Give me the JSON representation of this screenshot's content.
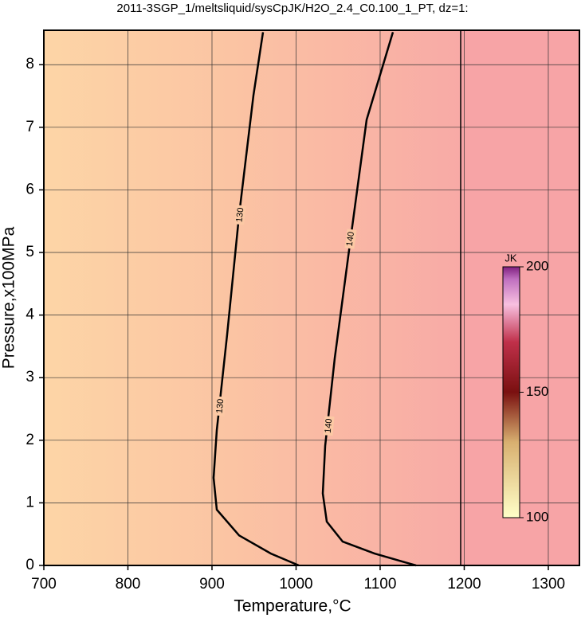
{
  "chart_data": {
    "type": "contour",
    "title": "2011-3SGP_1/meltsliquid/sysCpJK/H2O_2.4_C0.100_1_PT, dz=1:",
    "x_label": "Temperature,°C",
    "y_label": "Pressure,x100MPa",
    "xlim": [
      700,
      1337
    ],
    "ylim": [
      0,
      8.55
    ],
    "xticks": [
      700,
      800,
      900,
      1000,
      1100,
      1200,
      1300
    ],
    "yticks": [
      0,
      1,
      2,
      3,
      4,
      5,
      6,
      7,
      8
    ],
    "grid": true,
    "contours": [
      {
        "level": 130,
        "x": [
          1003.3,
          970.1,
          932.2,
          905.7,
          901.9,
          905.7,
          918.0,
          932.2,
          949.3,
          960.7
        ],
        "y": [
          0,
          0.19,
          0.48,
          0.89,
          1.4,
          2.16,
          3.69,
          5.6,
          7.51,
          8.52
        ]
      },
      {
        "level": 140,
        "x": [
          1142.7,
          1093.4,
          1055.5,
          1036.5,
          1031.8,
          1034.6,
          1046.0,
          1064.9,
          1083.9,
          1115.2
        ],
        "y": [
          0,
          0.19,
          0.38,
          0.7,
          1.15,
          1.91,
          3.31,
          5.22,
          7.12,
          8.52
        ]
      }
    ],
    "colorbar": {
      "label": "JK",
      "clim": [
        100,
        200
      ],
      "ticks": [
        100,
        150,
        200
      ]
    }
  }
}
